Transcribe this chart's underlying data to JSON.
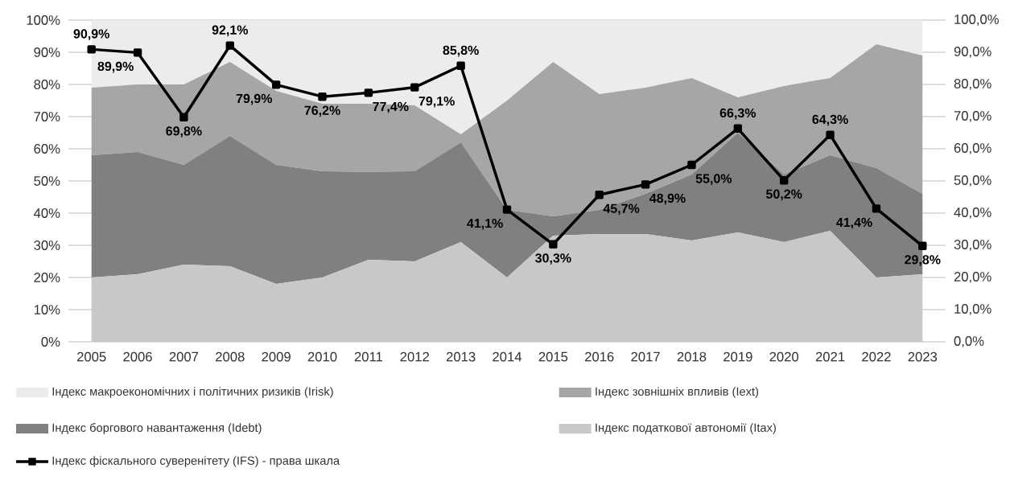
{
  "chart_data": {
    "type": "area",
    "stacked": true,
    "categories": [
      "2005",
      "2006",
      "2007",
      "2008",
      "2009",
      "2010",
      "2011",
      "2012",
      "2013",
      "2014",
      "2015",
      "2016",
      "2017",
      "2018",
      "2019",
      "2020",
      "2021",
      "2022",
      "2023"
    ],
    "series": [
      {
        "name": "Індекс податкової автономії (Itax)",
        "color": "#c8c8c8",
        "values": [
          20,
          21,
          24,
          23.5,
          18,
          20,
          25.5,
          25,
          31,
          20,
          33,
          33.5,
          33.5,
          31.5,
          34,
          31,
          34.5,
          20,
          21
        ]
      },
      {
        "name": "Індекс боргового навантаження (Idebt)",
        "color": "#808080",
        "values": [
          38,
          38,
          31,
          40.5,
          37,
          33,
          27.3,
          28,
          31,
          21,
          6,
          7.5,
          12.5,
          20.5,
          31,
          21,
          23.5,
          34,
          25
        ]
      },
      {
        "name": "Індекс зовнішніх впливів (Iext)",
        "color": "#a6a6a6",
        "values": [
          21,
          21,
          25,
          23,
          23,
          21,
          21.2,
          20.5,
          2.5,
          34,
          48,
          36,
          33,
          30,
          11,
          27.5,
          24,
          38.5,
          43
        ]
      },
      {
        "name": "Індекс макроекономічних і політичних ризиків (Irisk)",
        "color": "#ececec",
        "values": [
          21,
          20,
          20,
          13,
          22,
          26,
          26,
          26.5,
          35.5,
          25,
          13,
          23,
          21,
          18,
          24,
          20.5,
          18,
          7.5,
          11
        ]
      },
      {
        "name": "Індекс фіскального суверенітету (IFS) - права шкала",
        "type": "line",
        "axis": "y2",
        "color": "#000000",
        "marker": "square",
        "line_style": "solid",
        "values": [
          90.9,
          89.9,
          69.8,
          92.1,
          79.9,
          76.2,
          77.4,
          79.1,
          85.8,
          41.1,
          30.3,
          45.7,
          48.9,
          55.0,
          66.3,
          50.2,
          64.3,
          41.4,
          29.8
        ],
        "value_labels": [
          "90,9%",
          "89,9%",
          "69,8%",
          "92,1%",
          "79,9%",
          "76,2%",
          "77,4%",
          "79,1%",
          "85,8%",
          "41,1%",
          "30,3%",
          "45,7%",
          "48,9%",
          "55,0%",
          "66,3%",
          "50,2%",
          "64,3%",
          "41,4%",
          "29,8%"
        ]
      }
    ],
    "ylim": [
      0,
      100
    ],
    "yticks": [
      {
        "value": 0,
        "label": "0%"
      },
      {
        "value": 10,
        "label": "10%"
      },
      {
        "value": 20,
        "label": "20%"
      },
      {
        "value": 30,
        "label": "30%"
      },
      {
        "value": 40,
        "label": "40%"
      },
      {
        "value": 50,
        "label": "50%"
      },
      {
        "value": 60,
        "label": "60%"
      },
      {
        "value": 70,
        "label": "70%"
      },
      {
        "value": 80,
        "label": "80%"
      },
      {
        "value": 90,
        "label": "90%"
      },
      {
        "value": 100,
        "label": "100%"
      }
    ],
    "y2lim": [
      0,
      100
    ],
    "y2ticks": [
      {
        "value": 0,
        "label": "0,0%"
      },
      {
        "value": 10,
        "label": "10,0%"
      },
      {
        "value": 20,
        "label": "20,0%"
      },
      {
        "value": 30,
        "label": "30,0%"
      },
      {
        "value": 40,
        "label": "40,0%"
      },
      {
        "value": 50,
        "label": "50,0%"
      },
      {
        "value": 60,
        "label": "60,0%"
      },
      {
        "value": 70,
        "label": "70,0%"
      },
      {
        "value": 80,
        "label": "80,0%"
      },
      {
        "value": 90,
        "label": "90,0%"
      },
      {
        "value": 100,
        "label": "100,0%"
      }
    ],
    "grid": "y",
    "legend": "bottom"
  }
}
